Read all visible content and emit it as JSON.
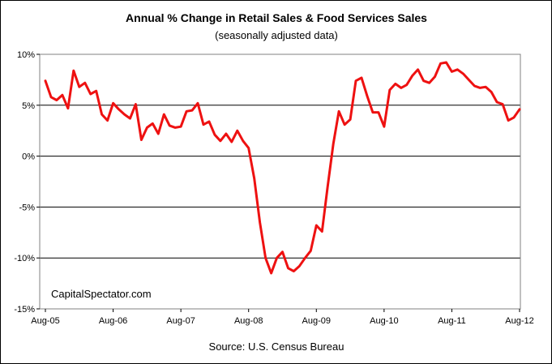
{
  "chart_data": {
    "type": "line",
    "title": "Annual %  Change in Retail Sales & Food Services Sales",
    "subtitle": "(seasonally adjusted data)",
    "annotation": "CapitalSpectator.com",
    "source": "Source: U.S. Census Bureau",
    "xlabel": "",
    "ylabel": "",
    "ylim": [
      -15,
      10
    ],
    "y_ticks": [
      "10%",
      "5%",
      "0%",
      "-5%",
      "-10%",
      "-15%"
    ],
    "y_tick_values": [
      10,
      5,
      0,
      -5,
      -10,
      -15
    ],
    "x_ticks": [
      "Aug-05",
      "Aug-06",
      "Aug-07",
      "Aug-08",
      "Aug-09",
      "Aug-10",
      "Aug-11",
      "Aug-12"
    ],
    "grid": "horizontal",
    "line_color": "#ee1111",
    "series": [
      {
        "values": [
          7.4,
          5.8,
          5.5,
          6.0,
          4.7,
          8.4,
          6.8,
          7.2,
          6.1,
          6.4,
          4.1,
          3.5,
          5.2,
          4.6,
          4.1,
          3.7,
          5.1,
          1.6,
          2.8,
          3.2,
          2.2,
          4.1,
          3.0,
          2.8,
          2.9,
          4.4,
          4.5,
          5.2,
          3.1,
          3.4,
          2.1,
          1.5,
          2.2,
          1.4,
          2.5,
          1.5,
          0.8,
          -2.2,
          -6.5,
          -10.0,
          -11.5,
          -10.0,
          -9.4,
          -11.0,
          -11.3,
          -10.8,
          -10.0,
          -9.3,
          -6.8,
          -7.4,
          -3.0,
          1.2,
          4.4,
          3.1,
          3.6,
          7.4,
          7.7,
          5.9,
          4.3,
          4.3,
          2.9,
          6.5,
          7.1,
          6.7,
          7.0,
          7.9,
          8.5,
          7.4,
          7.2,
          7.8,
          9.1,
          9.2,
          8.3,
          8.5,
          8.1,
          7.5,
          6.9,
          6.7,
          6.8,
          6.3,
          5.3,
          5.1,
          3.5,
          3.8,
          4.6
        ]
      }
    ]
  }
}
